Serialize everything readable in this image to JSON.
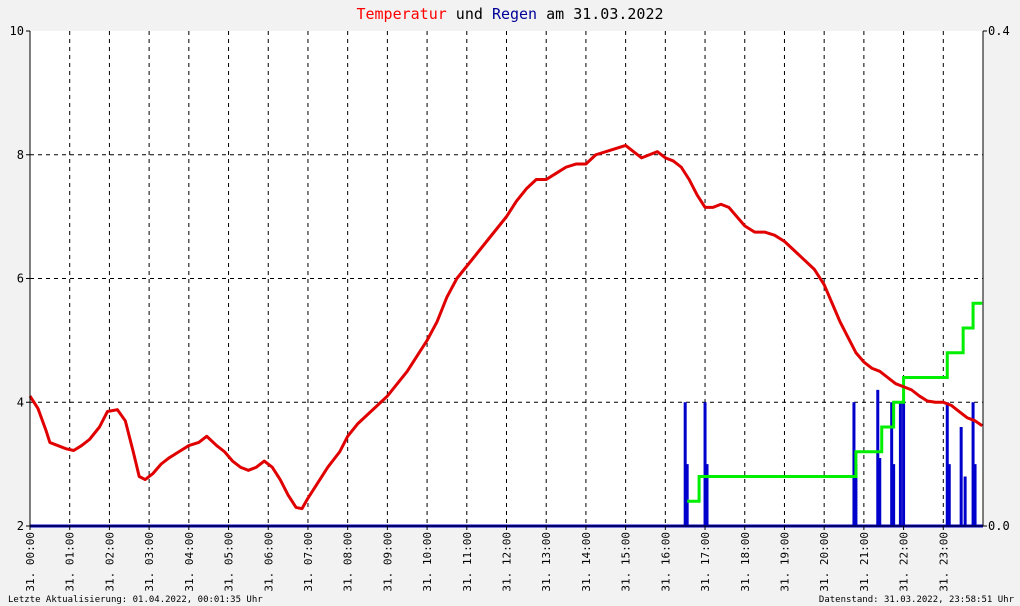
{
  "title": {
    "part1": "Temperatur",
    "part2": " und ",
    "part3": "Regen",
    "part4": " am 31.03.2022"
  },
  "colors": {
    "background": "#f2f2f2",
    "plot_bg": "#ffffff",
    "temperature": "#e00000",
    "rain_bars": "#0000cc",
    "rain_cumulative": "#00ee00",
    "title_temp": "#ff0000",
    "title_rain": "#000099",
    "text": "#000000",
    "grid": "#000000"
  },
  "footer": {
    "left": "Letzte Aktualisierung: 01.04.2022, 00:01:35 Uhr",
    "right": "Datenstand: 31.03.2022, 23:58:51 Uhr"
  },
  "chart_data": {
    "type": "line",
    "grid": true,
    "y_left": {
      "ylim": [
        2,
        10
      ],
      "ticks": [
        "2",
        "4",
        "6",
        "8",
        "10"
      ]
    },
    "y_right": {
      "ylim": [
        0.0,
        0.4
      ],
      "ticks": [
        "0.0",
        "0.4"
      ]
    },
    "x_ticks": [
      "31. 00:00",
      "31. 01:00",
      "31. 02:00",
      "31. 03:00",
      "31. 04:00",
      "31. 05:00",
      "31. 06:00",
      "31. 07:00",
      "31. 08:00",
      "31. 09:00",
      "31. 10:00",
      "31. 11:00",
      "31. 12:00",
      "31. 13:00",
      "31. 14:00",
      "31. 15:00",
      "31. 16:00",
      "31. 17:00",
      "31. 18:00",
      "31. 19:00",
      "31. 20:00",
      "31. 21:00",
      "31. 22:00",
      "31. 23:00"
    ],
    "xlim_hours": [
      0,
      24
    ],
    "temperature": {
      "name": "Temperatur",
      "x_hours": [
        0.0,
        0.2,
        0.4,
        0.5,
        0.7,
        0.9,
        1.1,
        1.3,
        1.5,
        1.75,
        1.95,
        2.2,
        2.4,
        2.6,
        2.75,
        2.9,
        3.1,
        3.3,
        3.5,
        3.75,
        4.0,
        4.25,
        4.45,
        4.7,
        4.9,
        5.1,
        5.3,
        5.5,
        5.7,
        5.9,
        6.1,
        6.3,
        6.5,
        6.7,
        6.85,
        7.0,
        7.25,
        7.5,
        7.8,
        8.0,
        8.25,
        8.5,
        8.75,
        9.0,
        9.25,
        9.5,
        9.75,
        10.0,
        10.25,
        10.5,
        10.75,
        11.0,
        11.25,
        11.5,
        11.75,
        12.0,
        12.25,
        12.5,
        12.75,
        13.0,
        13.25,
        13.5,
        13.75,
        14.0,
        14.25,
        14.5,
        14.75,
        15.0,
        15.2,
        15.4,
        15.6,
        15.8,
        16.0,
        16.2,
        16.4,
        16.6,
        16.8,
        17.0,
        17.2,
        17.4,
        17.6,
        17.8,
        18.0,
        18.25,
        18.5,
        18.75,
        19.0,
        19.25,
        19.5,
        19.75,
        20.0,
        20.2,
        20.4,
        20.6,
        20.8,
        21.0,
        21.2,
        21.4,
        21.6,
        21.8,
        22.0,
        22.2,
        22.4,
        22.6,
        22.8,
        23.0,
        23.2,
        23.4,
        23.6,
        23.8,
        23.98
      ],
      "values": [
        4.1,
        3.9,
        3.55,
        3.35,
        3.3,
        3.25,
        3.22,
        3.3,
        3.4,
        3.6,
        3.85,
        3.88,
        3.7,
        3.2,
        2.8,
        2.75,
        2.85,
        3.0,
        3.1,
        3.2,
        3.3,
        3.35,
        3.45,
        3.3,
        3.2,
        3.05,
        2.95,
        2.9,
        2.95,
        3.05,
        2.95,
        2.75,
        2.5,
        2.3,
        2.28,
        2.45,
        2.7,
        2.95,
        3.2,
        3.45,
        3.65,
        3.8,
        3.95,
        4.1,
        4.3,
        4.5,
        4.75,
        5.0,
        5.3,
        5.7,
        6.0,
        6.2,
        6.4,
        6.6,
        6.8,
        7.0,
        7.25,
        7.45,
        7.6,
        7.6,
        7.7,
        7.8,
        7.85,
        7.85,
        8.0,
        8.05,
        8.1,
        8.15,
        8.05,
        7.95,
        8.0,
        8.05,
        7.95,
        7.9,
        7.8,
        7.6,
        7.35,
        7.15,
        7.15,
        7.2,
        7.15,
        7.0,
        6.85,
        6.75,
        6.75,
        6.7,
        6.6,
        6.45,
        6.3,
        6.15,
        5.9,
        5.6,
        5.3,
        5.05,
        4.8,
        4.65,
        4.55,
        4.5,
        4.4,
        4.3,
        4.25,
        4.2,
        4.1,
        4.02,
        4.0,
        4.0,
        3.95,
        3.85,
        3.75,
        3.7,
        3.62
      ]
    },
    "rain_cumulative": {
      "x_hours": [
        16.55,
        16.85,
        16.85,
        20.8,
        20.8,
        21.45,
        21.45,
        21.75,
        21.75,
        22.0,
        22.0,
        23.1,
        23.1,
        23.5,
        23.5,
        23.75,
        23.75,
        23.98
      ],
      "values": [
        0.02,
        0.02,
        0.04,
        0.04,
        0.06,
        0.06,
        0.08,
        0.08,
        0.1,
        0.1,
        0.12,
        0.12,
        0.14,
        0.14,
        0.16,
        0.16,
        0.18,
        0.18
      ]
    },
    "rain_bars": {
      "x_hours": [
        16.5,
        16.55,
        17.0,
        17.05,
        20.75,
        20.8,
        21.35,
        21.4,
        21.7,
        21.75,
        21.92,
        22.0,
        23.1,
        23.15,
        23.45,
        23.55,
        23.75,
        23.8
      ],
      "values": [
        0.1,
        0.05,
        0.1,
        0.05,
        0.1,
        0.05,
        0.11,
        0.055,
        0.1,
        0.05,
        0.1,
        0.1,
        0.1,
        0.05,
        0.08,
        0.04,
        0.1,
        0.05
      ]
    }
  }
}
